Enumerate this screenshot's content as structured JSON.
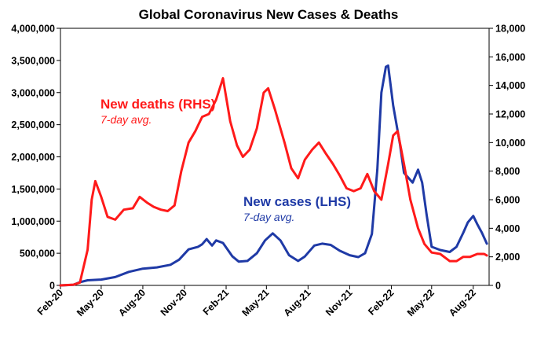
{
  "chart_data": {
    "type": "line",
    "title": "Global Coronavirus New Cases & Deaths",
    "x_ticks": [
      "Feb-20",
      "May-20",
      "Aug-20",
      "Nov-20",
      "Feb-21",
      "May-21",
      "Aug-21",
      "Nov-21",
      "Feb-22",
      "May-22",
      "Aug-22"
    ],
    "y_left": {
      "min": 0,
      "max": 4000000,
      "ticks": [
        "0",
        "500,000",
        "1,000,000",
        "1,500,000",
        "2,000,000",
        "2,500,000",
        "3,000,000",
        "3,500,000",
        "4,000,000"
      ]
    },
    "y_right": {
      "min": 0,
      "max": 18000,
      "ticks": [
        "0",
        "2,000",
        "4,000",
        "6,000",
        "8,000",
        "10,000",
        "12,000",
        "14,000",
        "16,000",
        "18,000"
      ]
    },
    "series": [
      {
        "name": "New cases (LHS)",
        "subtitle": "7-day avg.",
        "axis": "left",
        "color": "#1f3aa6",
        "x": [
          "2020-02-01",
          "2020-03-01",
          "2020-03-15",
          "2020-04-01",
          "2020-05-01",
          "2020-06-01",
          "2020-07-01",
          "2020-08-01",
          "2020-09-01",
          "2020-10-01",
          "2020-10-20",
          "2020-11-10",
          "2020-12-01",
          "2020-12-10",
          "2020-12-20",
          "2021-01-01",
          "2021-01-10",
          "2021-01-25",
          "2021-02-15",
          "2021-03-01",
          "2021-03-20",
          "2021-04-10",
          "2021-04-28",
          "2021-05-15",
          "2021-06-01",
          "2021-06-20",
          "2021-07-10",
          "2021-07-25",
          "2021-08-15",
          "2021-09-01",
          "2021-09-20",
          "2021-10-10",
          "2021-11-01",
          "2021-11-20",
          "2021-12-05",
          "2021-12-20",
          "2022-01-01",
          "2022-01-10",
          "2022-01-20",
          "2022-01-25",
          "2022-02-05",
          "2022-02-20",
          "2022-03-01",
          "2022-03-20",
          "2022-04-01",
          "2022-04-10",
          "2022-04-20",
          "2022-05-01",
          "2022-05-20",
          "2022-06-10",
          "2022-06-25",
          "2022-07-10",
          "2022-07-20",
          "2022-08-01",
          "2022-08-10",
          "2022-08-20",
          "2022-08-31"
        ],
        "values": [
          0,
          10000,
          50000,
          80000,
          90000,
          130000,
          210000,
          260000,
          280000,
          320000,
          400000,
          560000,
          600000,
          640000,
          720000,
          620000,
          700000,
          660000,
          450000,
          370000,
          380000,
          500000,
          700000,
          810000,
          700000,
          470000,
          380000,
          450000,
          620000,
          650000,
          630000,
          540000,
          470000,
          440000,
          500000,
          800000,
          1800000,
          3000000,
          3400000,
          3420000,
          2800000,
          2200000,
          1750000,
          1600000,
          1800000,
          1600000,
          1100000,
          600000,
          550000,
          520000,
          600000,
          820000,
          980000,
          1080000,
          950000,
          820000,
          650000
        ]
      },
      {
        "name": "New deaths (RHS)",
        "subtitle": "7-day avg.",
        "axis": "right",
        "color": "#ff1a1a",
        "x": [
          "2020-02-01",
          "2020-03-01",
          "2020-03-15",
          "2020-04-01",
          "2020-04-10",
          "2020-04-18",
          "2020-05-01",
          "2020-05-15",
          "2020-06-01",
          "2020-06-20",
          "2020-07-10",
          "2020-07-25",
          "2020-08-10",
          "2020-08-25",
          "2020-09-10",
          "2020-09-25",
          "2020-10-10",
          "2020-10-25",
          "2020-11-10",
          "2020-11-25",
          "2020-12-10",
          "2020-12-25",
          "2021-01-10",
          "2021-01-25",
          "2021-02-10",
          "2021-02-25",
          "2021-03-10",
          "2021-03-25",
          "2021-04-10",
          "2021-04-25",
          "2021-05-05",
          "2021-05-20",
          "2021-06-10",
          "2021-06-25",
          "2021-07-10",
          "2021-07-25",
          "2021-08-10",
          "2021-08-25",
          "2021-09-10",
          "2021-09-25",
          "2021-10-10",
          "2021-10-25",
          "2021-11-10",
          "2021-11-25",
          "2021-12-10",
          "2021-12-25",
          "2022-01-10",
          "2022-01-25",
          "2022-02-05",
          "2022-02-15",
          "2022-03-01",
          "2022-03-15",
          "2022-04-01",
          "2022-04-15",
          "2022-05-01",
          "2022-05-20",
          "2022-06-10",
          "2022-06-25",
          "2022-07-10",
          "2022-07-25",
          "2022-08-10",
          "2022-08-25",
          "2022-08-31"
        ],
        "values": [
          0,
          50,
          200,
          2500,
          6000,
          7300,
          6200,
          4800,
          4600,
          5300,
          5400,
          6200,
          5800,
          5500,
          5300,
          5200,
          5600,
          8000,
          10000,
          10800,
          11800,
          12000,
          13000,
          14500,
          11500,
          9800,
          9000,
          9500,
          11000,
          13500,
          13800,
          12300,
          10000,
          8200,
          7500,
          8800,
          9500,
          10000,
          9200,
          8500,
          7700,
          6800,
          6600,
          6800,
          7800,
          6600,
          6000,
          8500,
          10500,
          10800,
          8500,
          6000,
          4000,
          2900,
          2300,
          2200,
          1700,
          1700,
          2000,
          2000,
          2200,
          2200,
          2100
        ]
      }
    ],
    "annotations": {
      "deaths": {
        "main": "New deaths (RHS)",
        "sub": "7-day avg."
      },
      "cases": {
        "main": "New cases (LHS)",
        "sub": "7-day avg."
      }
    },
    "grid": false,
    "legend": "inline-labels"
  }
}
